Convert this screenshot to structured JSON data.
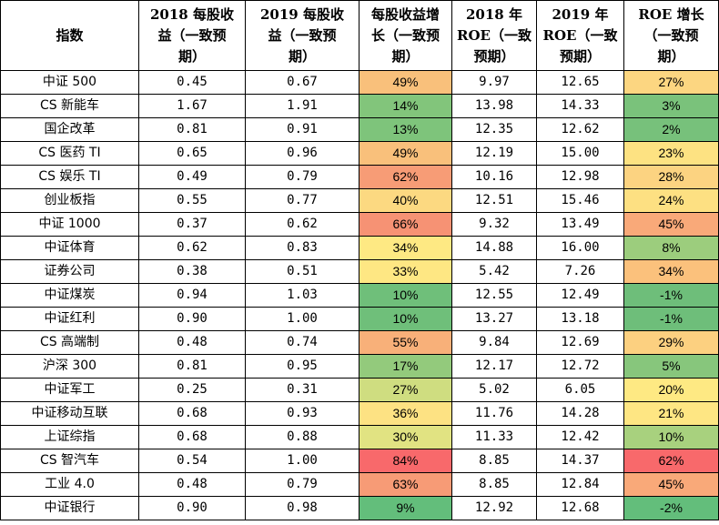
{
  "table": {
    "headers": [
      [
        "指数"
      ],
      [
        "2018 每股收",
        "益（一致预",
        "期）"
      ],
      [
        "2019 每股收",
        "益（一致预",
        "期）"
      ],
      [
        "每股收益增",
        "长（一致预",
        "期）"
      ],
      [
        "2018 年",
        "ROE（一致",
        "预期）"
      ],
      [
        "2019 年",
        "ROE（一致",
        "预期）"
      ],
      [
        "ROE 增长",
        "（一致预",
        "期）"
      ]
    ],
    "rows": [
      {
        "name": "中证 500",
        "eps2018": "0.45",
        "eps2019": "0.67",
        "eps_growth": "49%",
        "eps_color": "#f9c07b",
        "roe2018": "9.97",
        "roe2019": "12.65",
        "roe_growth": "27%",
        "roe_color": "#fcd681"
      },
      {
        "name": "CS 新能车",
        "eps2018": "1.67",
        "eps2019": "1.91",
        "eps_growth": "14%",
        "eps_color": "#82c57b",
        "roe2018": "13.98",
        "roe2019": "14.33",
        "roe_growth": "3%",
        "roe_color": "#7ac27b"
      },
      {
        "name": "国企改革",
        "eps2018": "0.81",
        "eps2019": "0.91",
        "eps_growth": "13%",
        "eps_color": "#7ec47b",
        "roe2018": "12.35",
        "roe2019": "12.62",
        "roe_growth": "2%",
        "roe_color": "#77c17b"
      },
      {
        "name": "CS 医药 TI",
        "eps2018": "0.65",
        "eps2019": "0.96",
        "eps_growth": "49%",
        "eps_color": "#f9c07b",
        "roe2018": "12.19",
        "roe2019": "15.00",
        "roe_growth": "23%",
        "roe_color": "#fde282"
      },
      {
        "name": "CS 娱乐 TI",
        "eps2018": "0.49",
        "eps2019": "0.79",
        "eps_growth": "62%",
        "eps_color": "#f79c76",
        "roe2018": "10.16",
        "roe2019": "12.98",
        "roe_growth": "28%",
        "roe_color": "#fcd381"
      },
      {
        "name": "创业板指",
        "eps2018": "0.55",
        "eps2019": "0.77",
        "eps_growth": "40%",
        "eps_color": "#fcd981",
        "roe2018": "12.51",
        "roe2019": "15.46",
        "roe_growth": "24%",
        "roe_color": "#fde082"
      },
      {
        "name": "中证 1000",
        "eps2018": "0.37",
        "eps2019": "0.62",
        "eps_growth": "66%",
        "eps_color": "#f69274",
        "roe2018": "9.32",
        "roe2019": "13.49",
        "roe_growth": "45%",
        "roe_color": "#f9a979"
      },
      {
        "name": "中证体育",
        "eps2018": "0.62",
        "eps2019": "0.83",
        "eps_growth": "34%",
        "eps_color": "#fee983",
        "roe2018": "14.88",
        "roe2019": "16.00",
        "roe_growth": "8%",
        "roe_color": "#9ccd7d"
      },
      {
        "name": "证券公司",
        "eps2018": "0.38",
        "eps2019": "0.51",
        "eps_growth": "33%",
        "eps_color": "#fee783",
        "roe2018": "5.42",
        "roe2019": "7.26",
        "roe_growth": "34%",
        "roe_color": "#fbc17c"
      },
      {
        "name": "中证煤炭",
        "eps2018": "0.94",
        "eps2019": "1.03",
        "eps_growth": "10%",
        "eps_color": "#6fbf7a",
        "roe2018": "12.55",
        "roe2019": "12.49",
        "roe_growth": "-1%",
        "roe_color": "#6ebe7a"
      },
      {
        "name": "中证红利",
        "eps2018": "0.90",
        "eps2019": "1.00",
        "eps_growth": "10%",
        "eps_color": "#6fbf7a",
        "roe2018": "13.27",
        "roe2019": "13.18",
        "roe_growth": "-1%",
        "roe_color": "#6ebe7a"
      },
      {
        "name": "CS 高端制",
        "eps2018": "0.48",
        "eps2019": "0.74",
        "eps_growth": "55%",
        "eps_color": "#f8b079",
        "roe2018": "9.84",
        "roe2019": "12.69",
        "roe_growth": "29%",
        "roe_color": "#fcd080"
      },
      {
        "name": "沪深 300",
        "eps2018": "0.81",
        "eps2019": "0.95",
        "eps_growth": "17%",
        "eps_color": "#93ca7c",
        "roe2018": "12.17",
        "roe2019": "12.72",
        "roe_growth": "5%",
        "roe_color": "#87c67c"
      },
      {
        "name": "中证军工",
        "eps2018": "0.25",
        "eps2019": "0.31",
        "eps_growth": "27%",
        "eps_color": "#cfdd80",
        "roe2018": "5.02",
        "roe2019": "6.05",
        "roe_growth": "20%",
        "roe_color": "#fee983"
      },
      {
        "name": "中证移动互联",
        "eps2018": "0.68",
        "eps2019": "0.93",
        "eps_growth": "36%",
        "eps_color": "#fde283",
        "roe2018": "11.76",
        "roe2019": "14.28",
        "roe_growth": "21%",
        "roe_color": "#fee683"
      },
      {
        "name": "上证综指",
        "eps2018": "0.68",
        "eps2019": "0.88",
        "eps_growth": "30%",
        "eps_color": "#e1e382",
        "roe2018": "11.33",
        "roe2019": "12.42",
        "roe_growth": "10%",
        "roe_color": "#a8d17e"
      },
      {
        "name": "CS 智汽车",
        "eps2018": "0.54",
        "eps2019": "1.00",
        "eps_growth": "84%",
        "eps_color": "#f8696b",
        "roe2018": "8.85",
        "roe2019": "14.37",
        "roe_growth": "62%",
        "roe_color": "#f8696b"
      },
      {
        "name": "工业 4.0",
        "eps2018": "0.48",
        "eps2019": "0.79",
        "eps_growth": "63%",
        "eps_color": "#f79b76",
        "roe2018": "8.85",
        "roe2019": "12.84",
        "roe_growth": "45%",
        "roe_color": "#f9a979"
      },
      {
        "name": "中证银行",
        "eps2018": "0.90",
        "eps2019": "0.98",
        "eps_growth": "9%",
        "eps_color": "#63be7b",
        "roe2018": "12.92",
        "roe2019": "12.68",
        "roe_growth": "-2%",
        "roe_color": "#63be7b"
      }
    ]
  }
}
